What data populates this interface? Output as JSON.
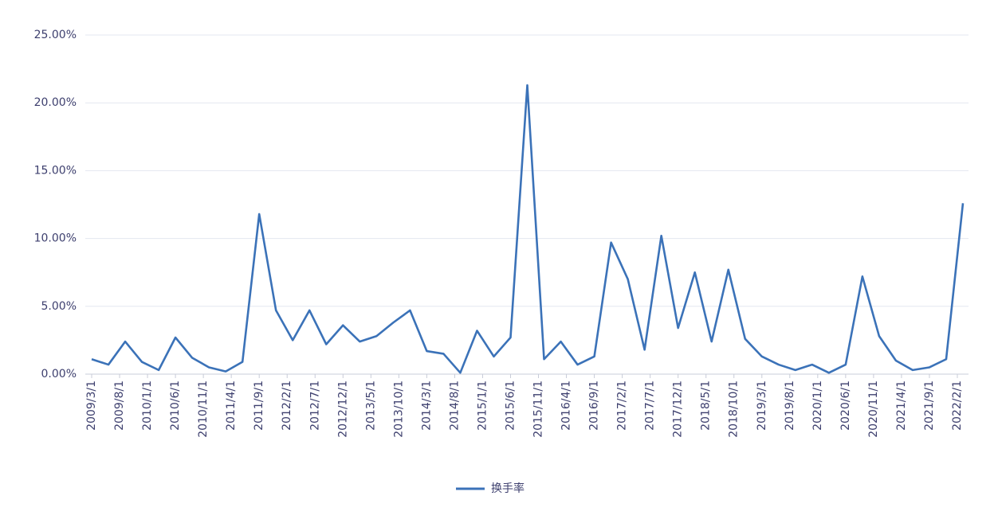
{
  "chart_data": {
    "type": "line",
    "x": [
      "2009/3/1",
      "2009/6/1",
      "2009/9/1",
      "2009/12/1",
      "2010/3/1",
      "2010/6/1",
      "2010/9/1",
      "2010/12/1",
      "2011/3/1",
      "2011/6/1",
      "2011/9/1",
      "2011/12/1",
      "2012/3/1",
      "2012/6/1",
      "2012/9/1",
      "2012/12/1",
      "2013/3/1",
      "2013/6/1",
      "2013/9/1",
      "2013/12/1",
      "2014/3/1",
      "2014/6/1",
      "2014/9/1",
      "2014/12/1",
      "2015/3/1",
      "2015/6/1",
      "2015/9/1",
      "2015/12/1",
      "2016/3/1",
      "2016/6/1",
      "2016/9/1",
      "2016/12/1",
      "2017/3/1",
      "2017/6/1",
      "2017/9/1",
      "2017/12/1",
      "2018/3/1",
      "2018/6/1",
      "2018/9/1",
      "2018/12/1",
      "2019/3/1",
      "2019/6/1",
      "2019/9/1",
      "2019/12/1",
      "2020/3/1",
      "2020/6/1",
      "2020/9/1",
      "2020/12/1",
      "2021/3/1",
      "2021/6/1",
      "2021/9/1",
      "2021/12/1",
      "2022/3/1"
    ],
    "series": [
      {
        "name": "换手率",
        "color": "#3b72b8",
        "values": [
          1.1,
          0.7,
          2.4,
          0.9,
          0.3,
          2.7,
          1.2,
          0.5,
          0.2,
          0.9,
          11.8,
          4.7,
          2.5,
          4.7,
          2.2,
          3.6,
          2.4,
          2.8,
          3.8,
          4.7,
          1.7,
          1.5,
          0.1,
          3.2,
          1.3,
          2.7,
          21.3,
          1.1,
          2.4,
          0.7,
          1.3,
          9.7,
          7.0,
          1.8,
          10.2,
          3.4,
          7.5,
          2.4,
          7.7,
          2.6,
          1.3,
          0.7,
          0.3,
          0.7,
          0.1,
          0.7,
          7.2,
          2.8,
          1.0,
          0.3,
          0.5,
          1.1,
          12.6
        ]
      }
    ],
    "xticks": [
      "2009/3/1",
      "2009/8/1",
      "2010/1/1",
      "2010/6/1",
      "2010/11/1",
      "2011/4/1",
      "2011/9/1",
      "2012/2/1",
      "2012/7/1",
      "2012/12/1",
      "2013/5/1",
      "2013/10/1",
      "2014/3/1",
      "2014/8/1",
      "2015/1/1",
      "2015/6/1",
      "2015/11/1",
      "2016/4/1",
      "2016/9/1",
      "2017/2/1",
      "2017/7/1",
      "2017/12/1",
      "2018/5/1",
      "2018/10/1",
      "2019/3/1",
      "2019/8/1",
      "2020/1/1",
      "2020/6/1",
      "2020/11/1",
      "2021/4/1",
      "2021/9/1",
      "2022/2/1"
    ],
    "ylim": [
      0,
      25
    ],
    "yticks": [
      {
        "value": 0,
        "label": "0.00%"
      },
      {
        "value": 5,
        "label": "5.00%"
      },
      {
        "value": 10,
        "label": "10.00%"
      },
      {
        "value": 15,
        "label": "15.00%"
      },
      {
        "value": 20,
        "label": "20.00%"
      },
      {
        "value": 25,
        "label": "25.00%"
      }
    ],
    "grid": true,
    "legend": "bottom"
  }
}
